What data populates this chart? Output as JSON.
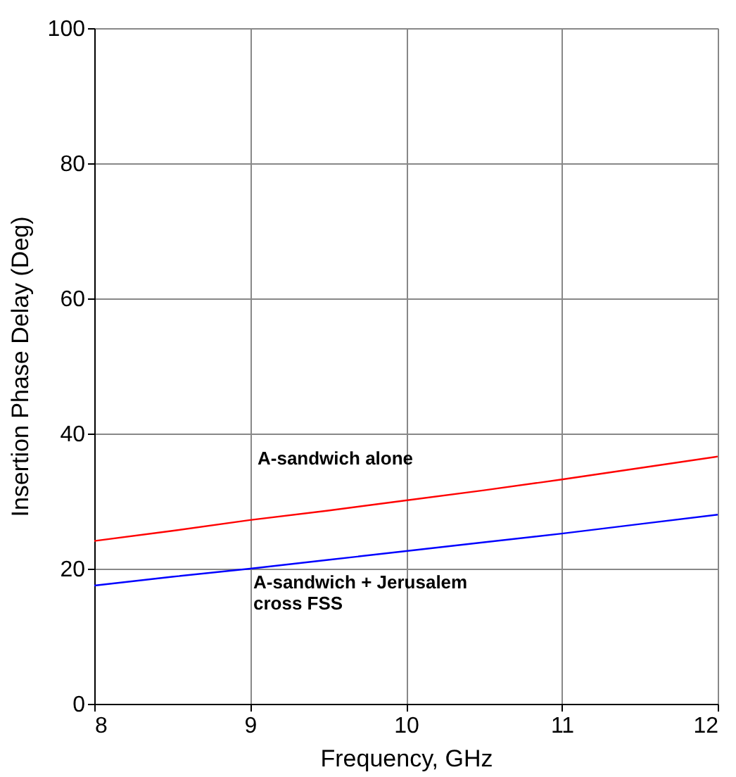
{
  "chart_data": {
    "type": "line",
    "xlabel": "Frequency, GHz",
    "ylabel": "Insertion Phase Delay (Deg)",
    "x": [
      8,
      8.5,
      9,
      9.5,
      10,
      10.5,
      11,
      11.5,
      12
    ],
    "series": [
      {
        "color": "#ff0000",
        "values": [
          24.1,
          25.6,
          27.2,
          28.6,
          30.1,
          31.6,
          33.2,
          34.9,
          36.6
        ]
      },
      {
        "color": "#0000ff",
        "values": [
          17.5,
          18.8,
          20.0,
          21.3,
          22.6,
          23.9,
          25.2,
          26.6,
          28.0
        ]
      }
    ],
    "xlim": [
      8,
      12
    ],
    "xticks": [
      8,
      9,
      10,
      11,
      12
    ],
    "ylim": [
      0,
      100
    ],
    "yticks": [
      0,
      20,
      40,
      60,
      80,
      100
    ],
    "grid": true,
    "marker": "none",
    "line_style": "solid",
    "annotations": [
      "A-sandwich alone",
      "A-sandwich + Jerusalem\ncross FSS"
    ]
  }
}
